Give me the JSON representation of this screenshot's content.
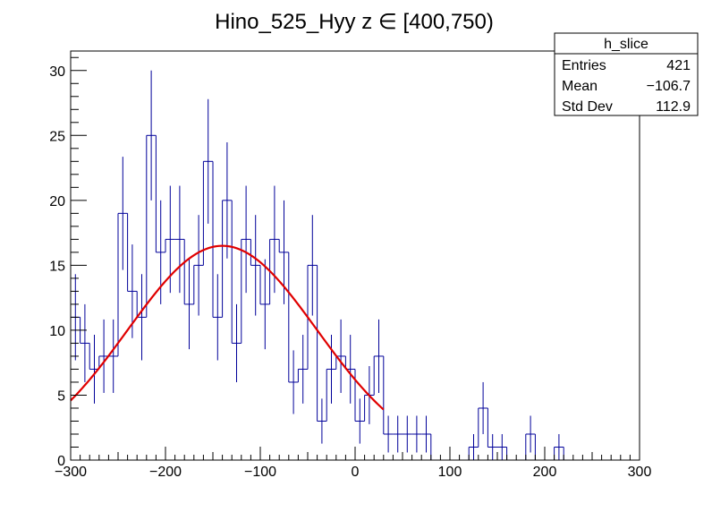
{
  "chart_data": {
    "type": "histogram",
    "title": "Hino_525_Hyy z  ∈ [400,750)",
    "xlabel": "",
    "ylabel": "",
    "xlim": [
      -300,
      300
    ],
    "ylim": [
      0,
      31.5
    ],
    "x_ticks": [
      -300,
      -200,
      -100,
      0,
      100,
      200,
      300
    ],
    "x_tick_labels": [
      "−300",
      "−200",
      "−100",
      "0",
      "100",
      "200",
      "300"
    ],
    "y_ticks": [
      0,
      5,
      10,
      15,
      20,
      25,
      30
    ],
    "y_tick_labels": [
      "0",
      "5",
      "10",
      "15",
      "20",
      "25",
      "30"
    ],
    "bin_edges_start": -300,
    "bin_width": 10,
    "counts": [
      11,
      9,
      7,
      8,
      8,
      19,
      13,
      11,
      25,
      16,
      17,
      17,
      12,
      15,
      23,
      11,
      20,
      9,
      17,
      15,
      12,
      17,
      16,
      6,
      7,
      15,
      3,
      7,
      8,
      7,
      3,
      5,
      8,
      2,
      2,
      2,
      2,
      2,
      0,
      0,
      0,
      0,
      1,
      4,
      1,
      1,
      0,
      0,
      2,
      0,
      0,
      1,
      0,
      0,
      0,
      0,
      0,
      0,
      0,
      0
    ],
    "fit": {
      "type": "gaus",
      "constant": 16.5,
      "mean": -140,
      "sigma": 100,
      "x_range": [
        -300,
        30
      ]
    },
    "stats_box": {
      "name": "h_slice",
      "rows": [
        {
          "label": "Entries",
          "value": "421"
        },
        {
          "label": "Mean",
          "value": "−106.7"
        },
        {
          "label": "Std Dev",
          "value": "112.9"
        }
      ]
    },
    "colors": {
      "histogram": "#000099",
      "fit": "#e00000",
      "axis": "#000000"
    }
  }
}
